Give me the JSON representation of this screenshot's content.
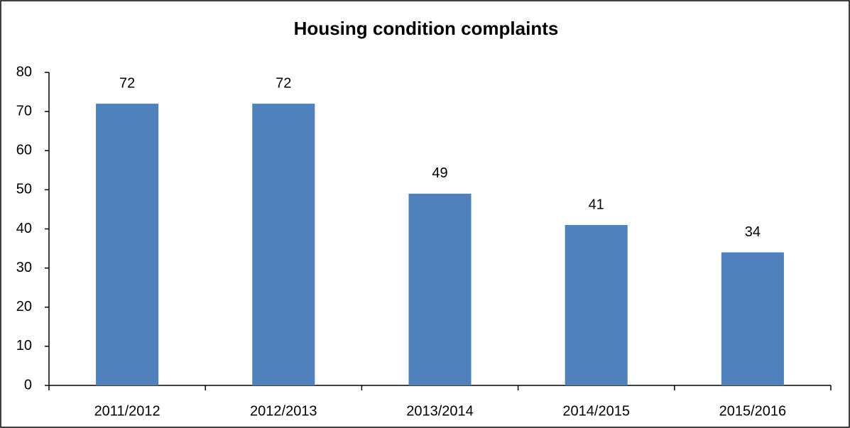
{
  "chart_data": {
    "type": "bar",
    "title": "Housing condition complaints",
    "categories": [
      "2011/2012",
      "2012/2013",
      "2013/2014",
      "2014/2015",
      "2015/2016"
    ],
    "values": [
      72,
      72,
      49,
      41,
      34
    ],
    "color": "#4f81bd",
    "ylim": [
      0,
      80
    ],
    "yticks": [
      0,
      10,
      20,
      30,
      40,
      50,
      60,
      70,
      80
    ],
    "grid": false
  }
}
